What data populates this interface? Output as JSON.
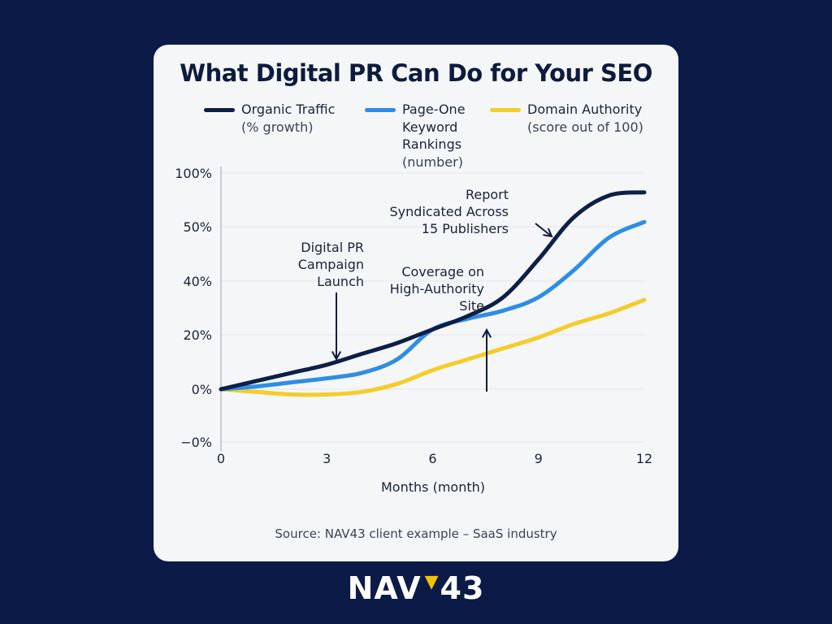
{
  "chart_data": {
    "type": "line",
    "title": "What Digital PR Can Do for Your SEO",
    "xlabel": "Months (month)",
    "x_ticks": [
      "0",
      "3",
      "6",
      "9",
      "12"
    ],
    "y_ticks": [
      "100%",
      "50%",
      "40%",
      "20%",
      "0%",
      "−0%"
    ],
    "x": [
      0,
      1,
      2,
      3,
      4,
      5,
      6,
      7,
      8,
      9,
      10,
      11,
      12
    ],
    "series": [
      {
        "name": "Organic Traffic",
        "unit": "(% growth)",
        "color": "#0d1f47",
        "values": [
          0,
          3,
          6,
          9,
          13,
          17,
          22,
          27,
          34,
          44,
          62,
          90,
          94
        ]
      },
      {
        "name": "Page-One Keyword Rankings",
        "unit": "(number)",
        "color": "#2f8de4",
        "values": [
          0,
          1,
          2.5,
          4,
          6,
          11,
          22,
          26,
          29,
          34,
          42,
          48,
          56
        ]
      },
      {
        "name": "Domain Authority",
        "unit": "(score out of 100)",
        "color": "#f5cc2a",
        "values": [
          0,
          -0.5,
          -1,
          -1,
          -0.5,
          2,
          7,
          11,
          15,
          19,
          24,
          28,
          33
        ]
      }
    ],
    "annotations": [
      {
        "text": [
          "Digital PR",
          "Campaign",
          "Launch"
        ],
        "x": 3.2
      },
      {
        "text": [
          "Coverage on",
          "High-Authority",
          "Site"
        ],
        "x": 7.6
      },
      {
        "text": [
          "Report",
          "Syndicated Across",
          "15 Publishers"
        ],
        "x": 10.2
      }
    ],
    "legend_position": "top",
    "grid": true
  },
  "legend": [
    {
      "name": "Organic Traffic",
      "lines": [
        "Organic Traffic"
      ],
      "sub": "(% growth)",
      "color": "#0d1f47"
    },
    {
      "name": "Page-One Keyword Rankings",
      "lines": [
        "Page-One",
        "Keyword",
        "Rankings"
      ],
      "sub": "(number)",
      "color": "#2f8de4"
    },
    {
      "name": "Domain Authority",
      "lines": [
        "Domain Authority"
      ],
      "sub": "(score out of 100)",
      "color": "#f5cc2a"
    }
  ],
  "source": "Source: NAV43 client example – SaaS industry",
  "logo": {
    "left": "NAV",
    "right": "43"
  }
}
